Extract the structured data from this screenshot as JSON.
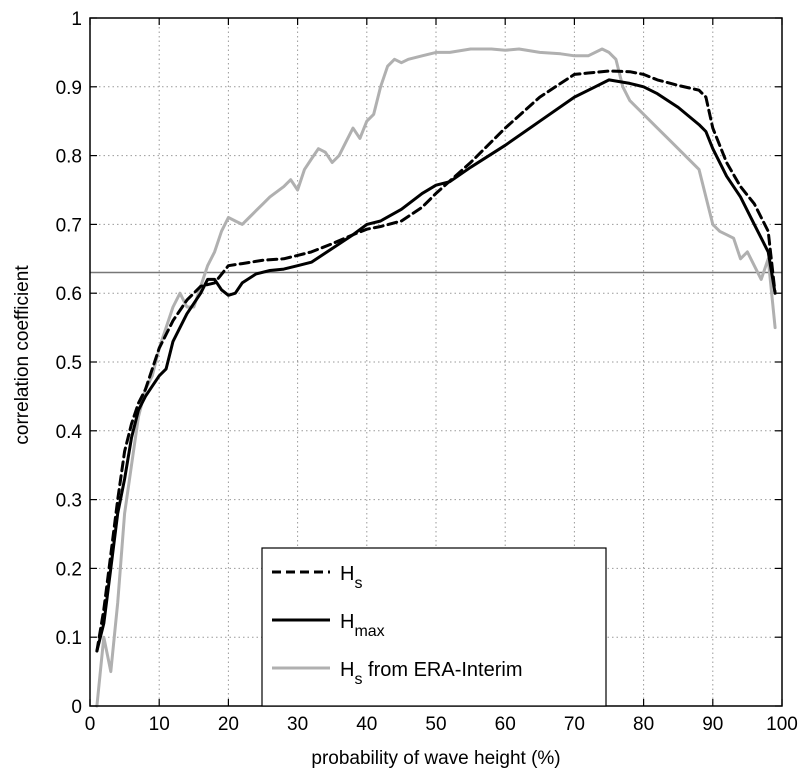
{
  "chart_data": {
    "type": "line",
    "xlabel": "probability of wave height (%)",
    "ylabel": "correlation coefficient",
    "xlim": [
      0,
      100
    ],
    "ylim": [
      0,
      1
    ],
    "xticks": [
      0,
      10,
      20,
      30,
      40,
      50,
      60,
      70,
      80,
      90,
      100
    ],
    "xtick_labels": [
      "0",
      "10",
      "20",
      "30",
      "40",
      "50",
      "60",
      "70",
      "80",
      "90",
      "100"
    ],
    "yticks": [
      0,
      0.1,
      0.2,
      0.3,
      0.4,
      0.5,
      0.6,
      0.7,
      0.8,
      0.9,
      1
    ],
    "ytick_labels": [
      "0",
      "0.1",
      "0.2",
      "0.3",
      "0.4",
      "0.5",
      "0.6",
      "0.7",
      "0.8",
      "0.9",
      "1"
    ],
    "grid": true,
    "legend_position": "bottom-center",
    "reference_line": {
      "y": 0.63,
      "color": "#777777"
    },
    "series": [
      {
        "name": "H",
        "subscript": "s",
        "suffix": "",
        "style": "dashed",
        "color": "#000000",
        "x": [
          1,
          2,
          3,
          4,
          5,
          6,
          7,
          8,
          9,
          10,
          12,
          14,
          16,
          18,
          20,
          22,
          25,
          28,
          30,
          32,
          35,
          38,
          40,
          42,
          45,
          48,
          50,
          55,
          60,
          65,
          68,
          70,
          72,
          75,
          78,
          80,
          82,
          85,
          88,
          89,
          90,
          92,
          94,
          96,
          98,
          99
        ],
        "y": [
          0.08,
          0.14,
          0.22,
          0.3,
          0.37,
          0.41,
          0.44,
          0.46,
          0.49,
          0.52,
          0.56,
          0.59,
          0.61,
          0.615,
          0.64,
          0.643,
          0.648,
          0.65,
          0.655,
          0.66,
          0.672,
          0.685,
          0.693,
          0.697,
          0.705,
          0.725,
          0.745,
          0.79,
          0.84,
          0.885,
          0.905,
          0.918,
          0.92,
          0.923,
          0.922,
          0.918,
          0.91,
          0.902,
          0.895,
          0.885,
          0.84,
          0.79,
          0.755,
          0.73,
          0.69,
          0.6
        ]
      },
      {
        "name": "H",
        "subscript": "max",
        "suffix": "",
        "style": "solid",
        "color": "#000000",
        "x": [
          1,
          2,
          3,
          4,
          5,
          6,
          7,
          8,
          9,
          10,
          11,
          12,
          14,
          16,
          17,
          18,
          19,
          20,
          21,
          22,
          24,
          26,
          28,
          30,
          32,
          35,
          38,
          40,
          42,
          45,
          48,
          50,
          52,
          55,
          60,
          65,
          70,
          73,
          75,
          78,
          80,
          82,
          85,
          88,
          89,
          90,
          92,
          94,
          96,
          98,
          99
        ],
        "y": [
          0.08,
          0.12,
          0.2,
          0.28,
          0.33,
          0.39,
          0.43,
          0.45,
          0.465,
          0.48,
          0.49,
          0.53,
          0.57,
          0.6,
          0.62,
          0.62,
          0.605,
          0.597,
          0.6,
          0.615,
          0.628,
          0.633,
          0.635,
          0.64,
          0.645,
          0.665,
          0.685,
          0.7,
          0.705,
          0.722,
          0.745,
          0.757,
          0.762,
          0.783,
          0.815,
          0.85,
          0.885,
          0.9,
          0.91,
          0.905,
          0.9,
          0.89,
          0.87,
          0.845,
          0.835,
          0.81,
          0.77,
          0.74,
          0.7,
          0.66,
          0.6
        ]
      },
      {
        "name": "H",
        "subscript": "s",
        "suffix": " from ERA-Interim",
        "style": "solid",
        "color": "#b0b0b0",
        "x": [
          1,
          2,
          3,
          4,
          5,
          6,
          7,
          8,
          9,
          10,
          11,
          12,
          13,
          14,
          15,
          16,
          17,
          18,
          19,
          20,
          21,
          22,
          23,
          24,
          25,
          26,
          28,
          29,
          30,
          31,
          32,
          33,
          34,
          35,
          36,
          37,
          38,
          39,
          40,
          41,
          42,
          43,
          44,
          45,
          46,
          48,
          50,
          52,
          55,
          58,
          60,
          62,
          65,
          68,
          70,
          72,
          74,
          75,
          76,
          77,
          78,
          80,
          82,
          84,
          86,
          88,
          89,
          90,
          91,
          92,
          93,
          94,
          95,
          96,
          97,
          98,
          99
        ],
        "y": [
          0.0,
          0.1,
          0.05,
          0.15,
          0.28,
          0.35,
          0.42,
          0.46,
          0.48,
          0.52,
          0.55,
          0.58,
          0.6,
          0.58,
          0.58,
          0.61,
          0.64,
          0.66,
          0.69,
          0.71,
          0.705,
          0.7,
          0.71,
          0.72,
          0.73,
          0.74,
          0.755,
          0.765,
          0.75,
          0.78,
          0.795,
          0.81,
          0.805,
          0.79,
          0.8,
          0.82,
          0.84,
          0.825,
          0.85,
          0.86,
          0.9,
          0.93,
          0.94,
          0.935,
          0.94,
          0.945,
          0.95,
          0.95,
          0.955,
          0.955,
          0.953,
          0.955,
          0.95,
          0.948,
          0.945,
          0.945,
          0.955,
          0.95,
          0.94,
          0.9,
          0.88,
          0.86,
          0.84,
          0.82,
          0.8,
          0.78,
          0.74,
          0.7,
          0.69,
          0.685,
          0.68,
          0.65,
          0.66,
          0.64,
          0.62,
          0.65,
          0.55
        ]
      }
    ]
  }
}
